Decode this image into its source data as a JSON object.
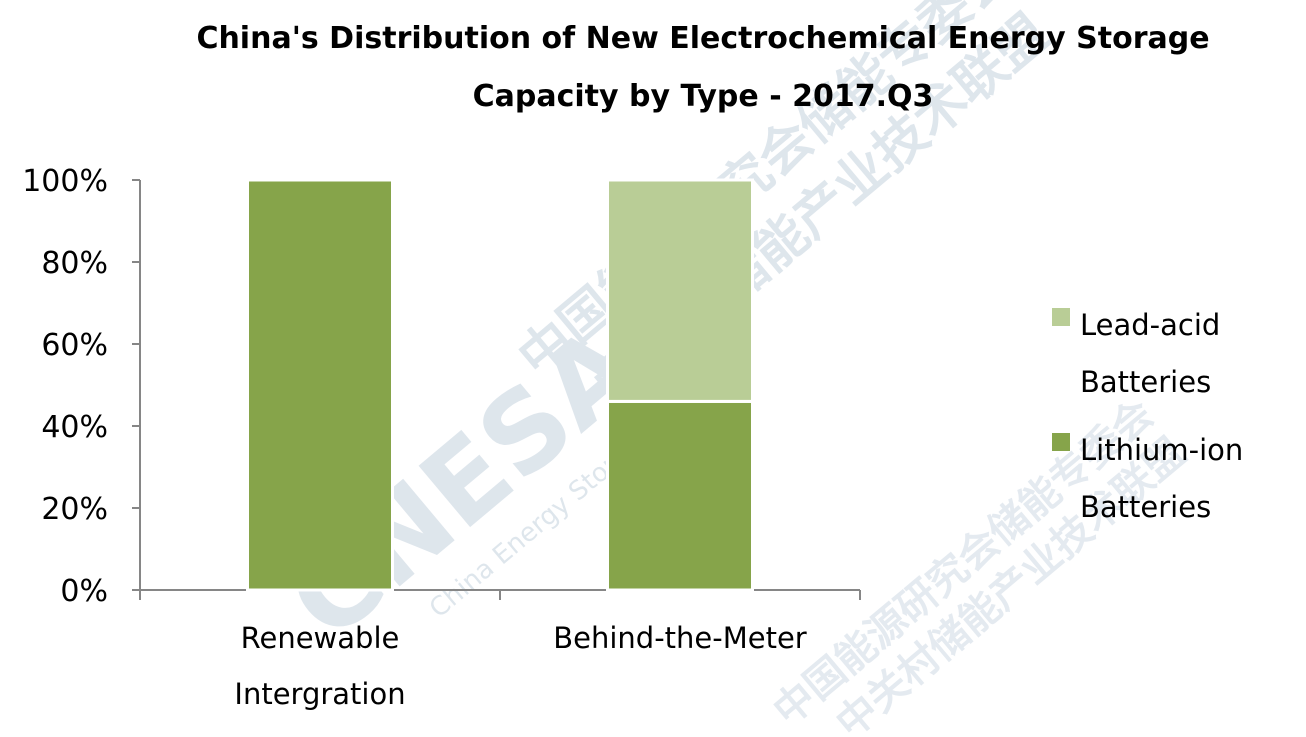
{
  "chart_data": {
    "type": "bar",
    "stacked": true,
    "percent": true,
    "title_lines": [
      "China's Distribution of New Electrochemical Energy Storage",
      "Capacity by Type - 2017.Q3"
    ],
    "categories": [
      [
        "Renewable",
        "Intergration"
      ],
      [
        "Behind-the-Meter"
      ]
    ],
    "series": [
      {
        "name_lines": [
          "Lithium-ion",
          "Batteries"
        ],
        "color": "#86A44A",
        "values": [
          100,
          46
        ]
      },
      {
        "name_lines": [
          "Lead-acid",
          "Batteries"
        ],
        "color": "#B9CD96",
        "values": [
          0,
          54
        ]
      }
    ],
    "ylim": [
      0,
      100
    ],
    "yticks": [
      "0%",
      "20%",
      "40%",
      "60%",
      "80%",
      "100%"
    ],
    "legend_position": "right",
    "grid": false,
    "watermark": {
      "logo_text": "CNESA",
      "subtitle": "China Energy Storage Alliance",
      "lines": [
        "中国能源研究会储能专委会",
        "中关村储能产业技术联盟"
      ]
    }
  }
}
